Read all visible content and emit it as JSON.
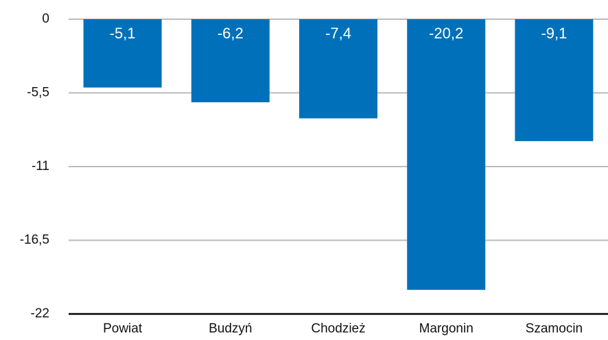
{
  "chart_data": {
    "type": "bar",
    "categories": [
      "Powiat",
      "Budzyń",
      "Chodzież",
      "Margonin",
      "Szamocin"
    ],
    "values": [
      -5.1,
      -6.2,
      -7.4,
      -20.2,
      -9.1
    ],
    "value_labels": [
      "-5,1",
      "-6,2",
      "-7,4",
      "-20,2",
      "-9,1"
    ],
    "color": "#0070ba",
    "ylim": [
      -22,
      0
    ],
    "yticks": [
      0,
      {
        "value": -5.5,
        "label": "-5,5"
      },
      -11,
      {
        "value": -16.5,
        "label": "-16,5"
      },
      -22
    ],
    "grid": true
  }
}
